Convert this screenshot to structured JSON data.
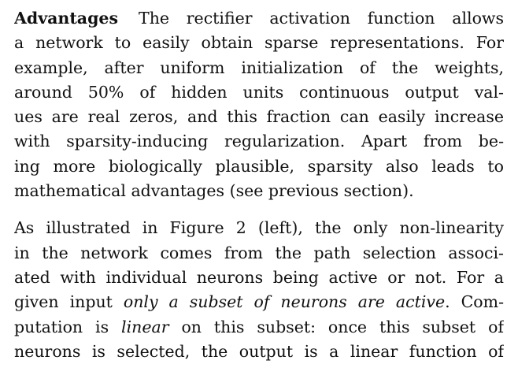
{
  "paragraphs": [
    {
      "heading": "Advantages",
      "lines": [
        "The rectifier activation function allows",
        "a network to easily obtain sparse representations. For",
        "example, after uniform initialization of the weights,",
        "around 50% of hidden units continuous output val-",
        "ues are real zeros, and this fraction can easily increase",
        "with sparsity-inducing regularization. Apart from be-",
        "ing more biologically plausible, sparsity also leads to",
        "mathematical advantages (see previous section)."
      ]
    },
    {
      "lines": [
        "As illustrated in Figure 2 (left), the only non-linearity",
        "in the network comes from the path selection associ-",
        "ated with individual neurons being active or not. For a"
      ],
      "line4": {
        "before": "given input ",
        "em": "only a subset of neurons are active",
        "after": ". Com-"
      },
      "line5": {
        "before": "putation is ",
        "em": "linear",
        "after": " on this subset: once this subset of"
      },
      "line6": "neurons is selected, the output is a linear function of"
    }
  ]
}
